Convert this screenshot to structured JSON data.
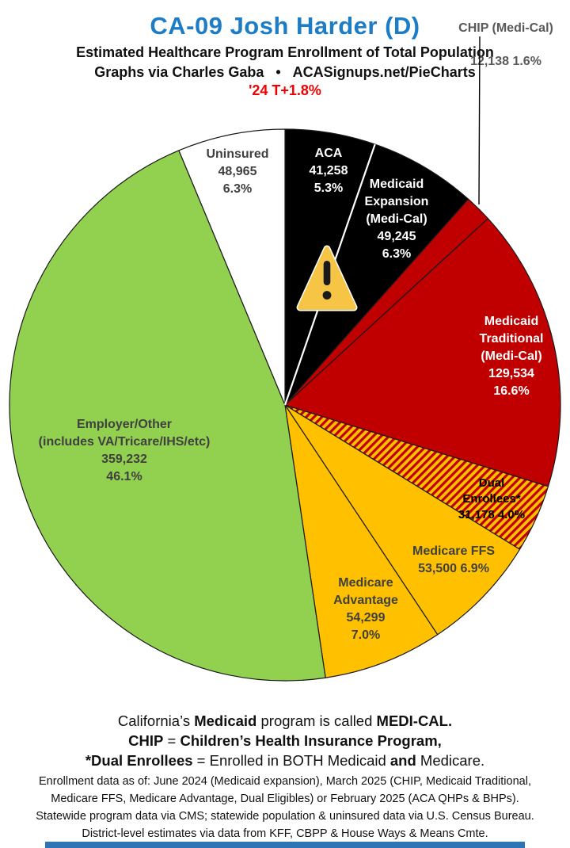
{
  "header": {
    "title": "CA-09 Josh Harder (D)",
    "title_color": "#1C7CC5",
    "subtitle": "Estimated Healthcare Program Enrollment of Total Population",
    "byline": "Graphs via Charles Gaba   •   ACASignups.net/PieCharts",
    "trend_note": "'24 T+1.8%",
    "trend_color": "#F20000"
  },
  "callout": {
    "label": "CHIP (Medi-Cal)",
    "value": "12,138 1.6%"
  },
  "chart_data": {
    "type": "pie",
    "title": "Estimated Healthcare Program Enrollment of Total Population",
    "legend_position": "labels-in-slices",
    "start_angle_deg": 0,
    "direction": "clockwise",
    "colors": {
      "black": "#000000",
      "red": "#C00000",
      "amber": "#FFC000",
      "green": "#92D050",
      "white": "#FFFFFF",
      "hatch_stripe": "#C00000",
      "hatch_bg": "#FFC000"
    },
    "slices": [
      {
        "label": "ACA",
        "enrollment": 41258,
        "pct": 5.3,
        "color": "#000000",
        "label_lines": [
          "ACA",
          "41,258",
          "5.3%"
        ]
      },
      {
        "label": "Medicaid Expansion (Medi-Cal)",
        "enrollment": 49245,
        "pct": 6.3,
        "color": "#000000",
        "label_lines": [
          "Medicaid",
          "Expansion",
          "(Medi-Cal)",
          "49,245",
          "6.3%"
        ]
      },
      {
        "label": "CHIP (Medi-Cal)",
        "enrollment": 12138,
        "pct": 1.6,
        "color": "#C00000",
        "label_lines": []
      },
      {
        "label": "Medicaid Traditional (Medi-Cal)",
        "enrollment": 129534,
        "pct": 16.6,
        "color": "#C00000",
        "label_lines": [
          "Medicaid",
          "Traditional",
          "(Medi-Cal)",
          "129,534",
          "16.6%"
        ]
      },
      {
        "label": "Dual Enrollees*",
        "enrollment": 31178,
        "pct": 4.0,
        "color": "#FFC000",
        "pattern": "hatch",
        "label_lines": [
          "Dual Enrollees*",
          "31,178 4.0%"
        ]
      },
      {
        "label": "Medicare FFS",
        "enrollment": 53500,
        "pct": 6.9,
        "color": "#FFC000",
        "label_lines": [
          "Medicare FFS",
          "53,500 6.9%"
        ]
      },
      {
        "label": "Medicare Advantage",
        "enrollment": 54299,
        "pct": 7.0,
        "color": "#FFC000",
        "label_lines": [
          "Medicare",
          "Advantage",
          "54,299",
          "7.0%"
        ]
      },
      {
        "label": "Employer/Other (includes VA/Tricare/IHS/etc)",
        "enrollment": 359232,
        "pct": 46.1,
        "color": "#92D050",
        "label_lines": [
          "Employer/Other",
          "(includes VA/Tricare/IHS/etc)",
          "359,232",
          "46.1%"
        ]
      },
      {
        "label": "Uninsured",
        "enrollment": 48965,
        "pct": 6.3,
        "color": "#FFFFFF",
        "label_lines": [
          "Uninsured",
          "48,965",
          "6.3%"
        ]
      }
    ]
  },
  "warning_icon": {
    "name": "warning-triangle-icon",
    "fill": "#F6C546",
    "mark_color": "#1A1A1A"
  },
  "footnotes": {
    "lines": [
      [
        {
          "t": "California’s ",
          "b": 0
        },
        {
          "t": "Medicaid",
          "b": 1
        },
        {
          "t": " program is called ",
          "b": 0
        },
        {
          "t": "MEDI-CAL.",
          "b": 1
        }
      ],
      [
        {
          "t": "CHIP",
          "b": 1
        },
        {
          "t": " = ",
          "b": 0
        },
        {
          "t": "Children’s Health Insurance Program,",
          "b": 1
        }
      ],
      [
        {
          "t": "*Dual Enrollees",
          "b": 1
        },
        {
          "t": " = Enrolled in BOTH Medicaid ",
          "b": 0
        },
        {
          "t": "and",
          "b": 1
        },
        {
          "t": " Medicare.",
          "b": 0
        }
      ]
    ],
    "fine_print": [
      "Enrollment data as of: June 2024 (Medicaid expansion), March 2025 (CHIP, Medicaid Traditional,",
      "Medicare FFS, Medicare Advantage, Dual Eligibles) or February 2025 (ACA QHPs & BHPs).",
      "Statewide program data via CMS; statewide population & uninsured data via U.S. Census Bureau.",
      "District-level estimates via data from KFF, CBPP & House Ways & Means Cmte."
    ]
  },
  "footer_bar_color": "#2E75B6"
}
